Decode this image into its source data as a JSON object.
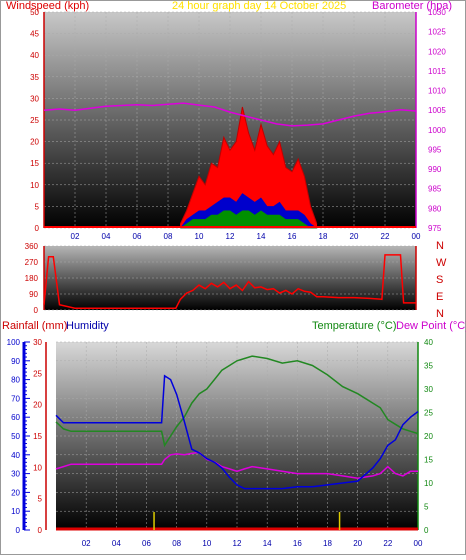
{
  "header": {
    "windspeed_label": "Windspeed (kph)",
    "graph_title": "24 hour graph day   14 October 2025",
    "barometer_label": "Barometer (hpa)",
    "rainfall_label": "Rainfall (mm)",
    "humidity_label": "Humidity",
    "temperature_label": "Temperature (°C)",
    "dewpoint_label": "Dew Point (°C)"
  },
  "colors": {
    "wind": "#ff0000",
    "gust_bg": "#c00000",
    "avg_wind": "#0000cc",
    "calm": "#009000",
    "barometer": "#dd00dd",
    "humidity": "#0000dd",
    "temperature": "#228822",
    "dewpoint": "#dd00dd",
    "rain": "#dd0000",
    "title": "#ffe000"
  },
  "chart_data": [
    {
      "type": "line",
      "name": "wind-barometer",
      "x_ticks": [
        "02",
        "04",
        "06",
        "08",
        "10",
        "12",
        "14",
        "16",
        "18",
        "20",
        "22",
        "00"
      ],
      "wind_axis": {
        "ylim": [
          0,
          50
        ],
        "ticks": [
          0,
          5,
          10,
          15,
          20,
          25,
          30,
          35,
          40,
          45,
          50
        ]
      },
      "barometer_axis": {
        "ylim": [
          975,
          1030
        ],
        "ticks": [
          975,
          980,
          985,
          990,
          995,
          1000,
          1005,
          1010,
          1015,
          1020,
          1025,
          1030
        ]
      },
      "barometer_series": {
        "hours": [
          0,
          1,
          2,
          3,
          4,
          5,
          6,
          7,
          8,
          9,
          10,
          11,
          12,
          13,
          14,
          15,
          16,
          17,
          18,
          19,
          20,
          21,
          22,
          23,
          24
        ],
        "values": [
          1005,
          1005.3,
          1005,
          1005.5,
          1006,
          1006.2,
          1006.4,
          1006.2,
          1006.5,
          1006.8,
          1006.3,
          1005.8,
          1004.5,
          1003.5,
          1002.5,
          1001.5,
          1001,
          1001.2,
          1001.5,
          1002.5,
          1003.5,
          1004.2,
          1004.6,
          1005.1,
          1004.8
        ]
      },
      "wind_hours": [
        8.8,
        9.2,
        9.6,
        10.0,
        10.4,
        10.8,
        11.2,
        11.6,
        12.0,
        12.4,
        12.8,
        13.2,
        13.6,
        14.0,
        14.4,
        14.8,
        15.2,
        15.6,
        16.0,
        16.4,
        16.8,
        17.2,
        17.6
      ],
      "wind_gust": [
        1,
        4,
        8,
        12,
        10,
        15,
        14,
        21,
        18,
        20,
        28,
        22,
        18,
        24,
        19,
        17,
        20,
        14,
        13,
        16,
        12,
        5,
        1
      ],
      "wind_average": [
        0,
        2,
        3,
        4,
        4,
        5,
        6,
        7,
        7,
        6,
        8,
        7,
        6,
        7,
        5,
        5,
        6,
        4,
        4,
        4,
        3,
        1,
        0
      ],
      "wind_calm_band": [
        0,
        1,
        2,
        2,
        2,
        3,
        3,
        4,
        4,
        3,
        4,
        4,
        3,
        4,
        3,
        3,
        3,
        2,
        2,
        2,
        1,
        0,
        0
      ]
    },
    {
      "type": "line",
      "name": "wind-direction",
      "left_ticks": [
        "360",
        "270",
        "180",
        "90",
        "0"
      ],
      "right_labels": [
        "N",
        "W",
        "S",
        "E",
        "N"
      ],
      "ylim": [
        0,
        360
      ],
      "hours": [
        0,
        0.3,
        0.6,
        1.0,
        2,
        4,
        6,
        8,
        8.5,
        8.8,
        9.2,
        9.6,
        10.0,
        10.4,
        10.8,
        11.2,
        11.6,
        12.0,
        12.4,
        12.8,
        13.2,
        13.6,
        14.0,
        14.4,
        14.8,
        15.2,
        15.6,
        16.0,
        16.4,
        16.8,
        17.2,
        17.6,
        18,
        19,
        20,
        21,
        21.8,
        22.0,
        23.0,
        23.2,
        23.6,
        24
      ],
      "values": [
        30,
        300,
        300,
        30,
        10,
        10,
        10,
        10,
        10,
        60,
        95,
        110,
        140,
        120,
        150,
        130,
        155,
        120,
        140,
        110,
        160,
        125,
        130,
        115,
        120,
        95,
        110,
        90,
        120,
        105,
        100,
        75,
        75,
        70,
        70,
        65,
        60,
        310,
        310,
        40,
        40,
        40
      ]
    },
    {
      "type": "line",
      "name": "temperature-humidity-rain",
      "x_ticks": [
        "02",
        "04",
        "06",
        "08",
        "10",
        "12",
        "14",
        "16",
        "18",
        "20",
        "22",
        "00"
      ],
      "humidity_axis": {
        "ylim": [
          0,
          100
        ],
        "ticks": [
          0,
          10,
          20,
          30,
          40,
          50,
          60,
          70,
          80,
          90,
          100
        ]
      },
      "rain_axis": {
        "ylim": [
          0,
          30
        ],
        "ticks": [
          0,
          5,
          10,
          15,
          20,
          25,
          30
        ]
      },
      "temperature_axis": {
        "ylim": [
          0,
          40
        ],
        "ticks": [
          0,
          5,
          10,
          15,
          20,
          25,
          30,
          35,
          40
        ]
      },
      "hours": [
        0,
        0.5,
        1,
        2,
        3,
        4,
        5,
        6,
        7,
        7.2,
        7.6,
        8,
        8.5,
        9,
        9.5,
        10,
        10.5,
        11,
        11.5,
        12,
        12.5,
        13,
        14,
        15,
        16,
        17,
        18,
        19,
        20,
        21,
        21.5,
        22,
        22.5,
        23,
        23.5,
        24
      ],
      "humidity": [
        61,
        57,
        57,
        57,
        57,
        57,
        57,
        57,
        57,
        82,
        80,
        72,
        58,
        43,
        41,
        38,
        36,
        33,
        28,
        24,
        22,
        22,
        22,
        22,
        23,
        23,
        24,
        25,
        26,
        33,
        38,
        45,
        48,
        56,
        60,
        63
      ],
      "temperature": [
        23,
        21.5,
        21,
        21,
        21,
        21,
        21,
        21,
        21,
        18,
        20,
        22,
        24,
        27,
        29,
        30,
        32,
        34,
        35,
        36,
        36.5,
        37,
        36.5,
        35.5,
        36,
        35,
        33,
        30.5,
        29,
        27,
        26,
        23.5,
        22.5,
        21.5,
        21,
        20.5
      ],
      "dewpoint": [
        13,
        13.5,
        14,
        14,
        14,
        14,
        14,
        14,
        14,
        15,
        16,
        16.2,
        16,
        16.3,
        16.5,
        15,
        14.5,
        13.5,
        13,
        12.5,
        13,
        13.5,
        13,
        12.5,
        12,
        12,
        12,
        11.5,
        11,
        11.5,
        12,
        13.5,
        12,
        11.5,
        12.5,
        12.5
      ],
      "rain_marker_hours": [
        6.5,
        18.8
      ]
    }
  ]
}
